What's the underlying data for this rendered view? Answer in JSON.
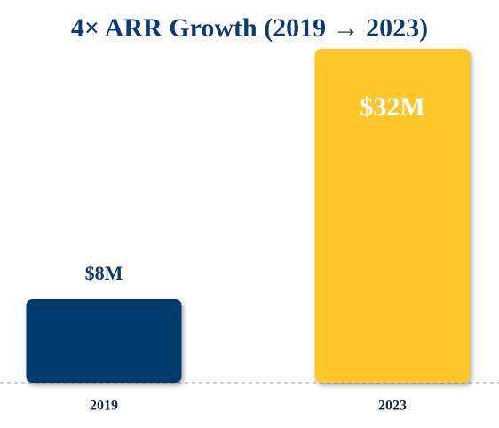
{
  "chart_data": {
    "type": "bar",
    "title": "4× ARR Growth (2019 → 2023)",
    "categories": [
      "2019",
      "2023"
    ],
    "values": [
      8,
      32
    ],
    "value_labels": [
      "$8M",
      "$32M"
    ],
    "colors": [
      "#003a70",
      "#ffc62b"
    ]
  }
}
